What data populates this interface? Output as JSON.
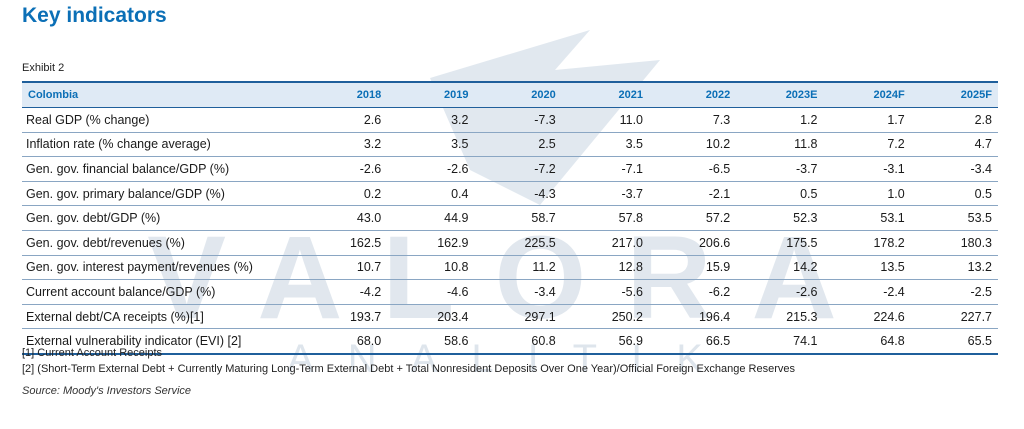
{
  "title": "Key indicators",
  "exhibit": "Exhibit 2",
  "table": {
    "headers": [
      "Colombia",
      "2018",
      "2019",
      "2020",
      "2021",
      "2022",
      "2023E",
      "2024F",
      "2025F"
    ],
    "rows": [
      [
        "Real GDP (% change)",
        "2.6",
        "3.2",
        "-7.3",
        "11.0",
        "7.3",
        "1.2",
        "1.7",
        "2.8"
      ],
      [
        "Inflation rate (% change average)",
        "3.2",
        "3.5",
        "2.5",
        "3.5",
        "10.2",
        "11.8",
        "7.2",
        "4.7"
      ],
      [
        "Gen. gov. financial balance/GDP (%)",
        "-2.6",
        "-2.6",
        "-7.2",
        "-7.1",
        "-6.5",
        "-3.7",
        "-3.1",
        "-3.4"
      ],
      [
        "Gen. gov. primary balance/GDP (%)",
        "0.2",
        "0.4",
        "-4.3",
        "-3.7",
        "-2.1",
        "0.5",
        "1.0",
        "0.5"
      ],
      [
        "Gen. gov. debt/GDP (%)",
        "43.0",
        "44.9",
        "58.7",
        "57.8",
        "57.2",
        "52.3",
        "53.1",
        "53.5"
      ],
      [
        "Gen. gov. debt/revenues (%)",
        "162.5",
        "162.9",
        "225.5",
        "217.0",
        "206.6",
        "175.5",
        "178.2",
        "180.3"
      ],
      [
        "Gen. gov. interest payment/revenues (%)",
        "10.7",
        "10.8",
        "11.2",
        "12.8",
        "15.9",
        "14.2",
        "13.5",
        "13.2"
      ],
      [
        "Current account balance/GDP (%)",
        "-4.2",
        "-4.6",
        "-3.4",
        "-5.6",
        "-6.2",
        "-2.6",
        "-2.4",
        "-2.5"
      ],
      [
        "External debt/CA receipts (%)[1]",
        "193.7",
        "203.4",
        "297.1",
        "250.2",
        "196.4",
        "215.3",
        "224.6",
        "227.7"
      ],
      [
        "External vulnerability indicator (EVI) [2]",
        "68.0",
        "58.6",
        "60.8",
        "56.9",
        "66.5",
        "74.1",
        "64.8",
        "65.5"
      ]
    ]
  },
  "footnotes": [
    "[1] Current Account Receipts",
    "[2] (Short-Term External Debt + Currently Maturing Long-Term External Debt + Total Nonresident Deposits Over One Year)/Official Foreign Exchange Reserves"
  ],
  "source": "Source: Moody's Investors Service",
  "watermark": {
    "line1": "VALORA",
    "line2": "ANALITIK",
    "color": "#c9d5e1"
  }
}
